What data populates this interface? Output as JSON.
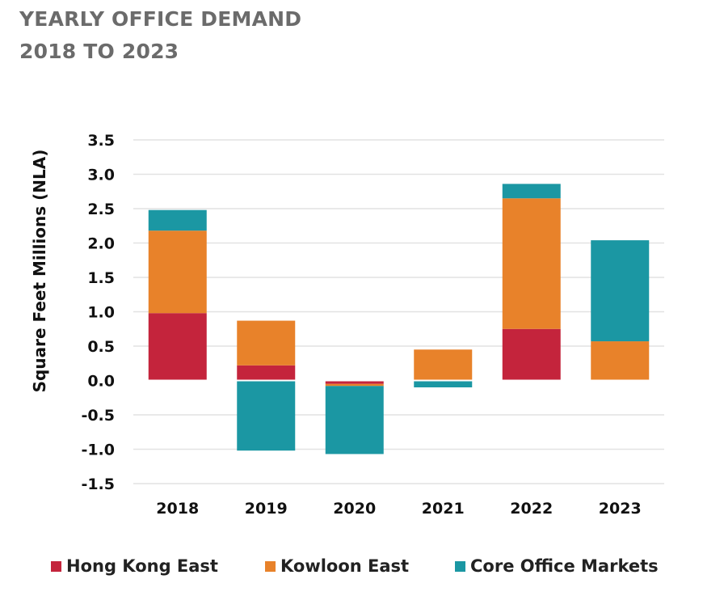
{
  "title_line1": "YEARLY OFFICE DEMAND",
  "title_line2": "2018 TO 2023",
  "chart_data": {
    "type": "bar",
    "stacked": true,
    "ylabel": "Square Feet Millions (NLA)",
    "xlabel": "",
    "ylim": [
      -1.5,
      3.5
    ],
    "yticks": [
      "3.5",
      "3.0",
      "2.5",
      "2.0",
      "1.5",
      "1.0",
      "0.5",
      "0.0",
      "-0.5",
      "-1.0",
      "-1.5"
    ],
    "ytick_values": [
      3.5,
      3.0,
      2.5,
      2.0,
      1.5,
      1.0,
      0.5,
      0.0,
      -0.5,
      -1.0,
      -1.5
    ],
    "grid": true,
    "legend_position": "bottom",
    "categories": [
      "2018",
      "2019",
      "2020",
      "2021",
      "2022",
      "2023"
    ],
    "series": [
      {
        "name": "Hong Kong East",
        "color": "#c4243c",
        "values": [
          0.98,
          0.22,
          -0.05,
          0.0,
          0.75,
          0.0
        ]
      },
      {
        "name": "Kowloon East",
        "color": "#e8822a",
        "values": [
          1.2,
          0.65,
          -0.03,
          0.45,
          1.9,
          0.57
        ]
      },
      {
        "name": "Core Office Markets",
        "color": "#1b97a3",
        "values": [
          0.3,
          -1.02,
          -0.99,
          -0.1,
          0.21,
          1.47
        ]
      }
    ]
  }
}
